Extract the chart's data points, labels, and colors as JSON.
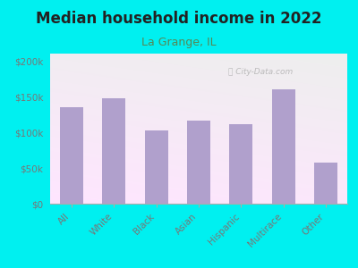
{
  "title": "Median household income in 2022",
  "subtitle": "La Grange, IL",
  "categories": [
    "All",
    "White",
    "Black",
    "Asian",
    "Hispanic",
    "Multirace",
    "Other"
  ],
  "values": [
    135000,
    147000,
    102000,
    116000,
    111000,
    160000,
    57000
  ],
  "bar_color": "#b0a0cc",
  "background_outer": "#00f0f0",
  "title_color": "#222222",
  "subtitle_color": "#558855",
  "tick_label_color": "#777777",
  "ylim": [
    0,
    210000
  ],
  "yticks": [
    0,
    50000,
    100000,
    150000,
    200000
  ],
  "ytick_labels": [
    "$0",
    "$50k",
    "$100k",
    "$150k",
    "$200k"
  ],
  "watermark": "City-Data.com",
  "title_fontsize": 12,
  "subtitle_fontsize": 9
}
